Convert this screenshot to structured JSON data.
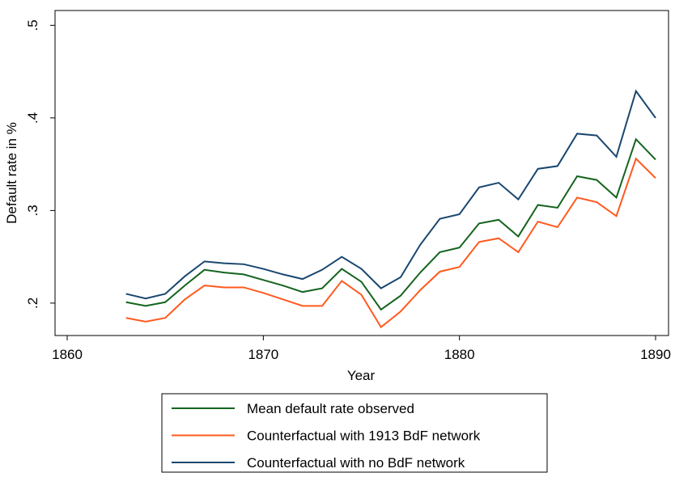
{
  "chart_data": {
    "type": "line",
    "x_label": "Year",
    "y_label": "Default rate in %",
    "x": [
      1863,
      1864,
      1865,
      1866,
      1867,
      1868,
      1869,
      1870,
      1871,
      1872,
      1873,
      1874,
      1875,
      1876,
      1877,
      1878,
      1879,
      1880,
      1881,
      1882,
      1883,
      1884,
      1885,
      1886,
      1887,
      1888,
      1889,
      1890
    ],
    "series": [
      {
        "name": "Mean default rate observed",
        "color": "#14641e",
        "values": [
          0.201,
          0.197,
          0.201,
          0.219,
          0.236,
          0.233,
          0.231,
          0.225,
          0.219,
          0.212,
          0.216,
          0.237,
          0.223,
          0.193,
          0.208,
          0.233,
          0.255,
          0.26,
          0.286,
          0.29,
          0.272,
          0.306,
          0.303,
          0.337,
          0.333,
          0.314,
          0.377,
          0.355
        ]
      },
      {
        "name": "Counterfactual with 1913 BdF network",
        "color": "#ff5a1f",
        "values": [
          0.184,
          0.18,
          0.184,
          0.204,
          0.219,
          0.217,
          0.217,
          0.211,
          0.204,
          0.197,
          0.197,
          0.224,
          0.209,
          0.174,
          0.191,
          0.214,
          0.234,
          0.239,
          0.266,
          0.27,
          0.255,
          0.288,
          0.282,
          0.314,
          0.309,
          0.294,
          0.356,
          0.335
        ]
      },
      {
        "name": "Counterfactual with no BdF network",
        "color": "#1a476f",
        "values": [
          0.21,
          0.205,
          0.21,
          0.229,
          0.245,
          0.243,
          0.242,
          0.237,
          0.231,
          0.226,
          0.236,
          0.25,
          0.237,
          0.216,
          0.228,
          0.263,
          0.291,
          0.296,
          0.325,
          0.33,
          0.312,
          0.345,
          0.348,
          0.383,
          0.381,
          0.358,
          0.429,
          0.4
        ]
      }
    ],
    "xlim": [
      1859.38,
      1890.66
    ],
    "xticks": [
      1860,
      1870,
      1880,
      1890
    ],
    "ylim": [
      0.165,
      0.516
    ],
    "yticks": [
      {
        "value": 0.2,
        "label": ".2"
      },
      {
        "value": 0.3,
        "label": ".3"
      },
      {
        "value": 0.4,
        "label": ".4"
      },
      {
        "value": 0.5,
        "label": ".5"
      }
    ],
    "grid": false,
    "legend": "bottom"
  }
}
